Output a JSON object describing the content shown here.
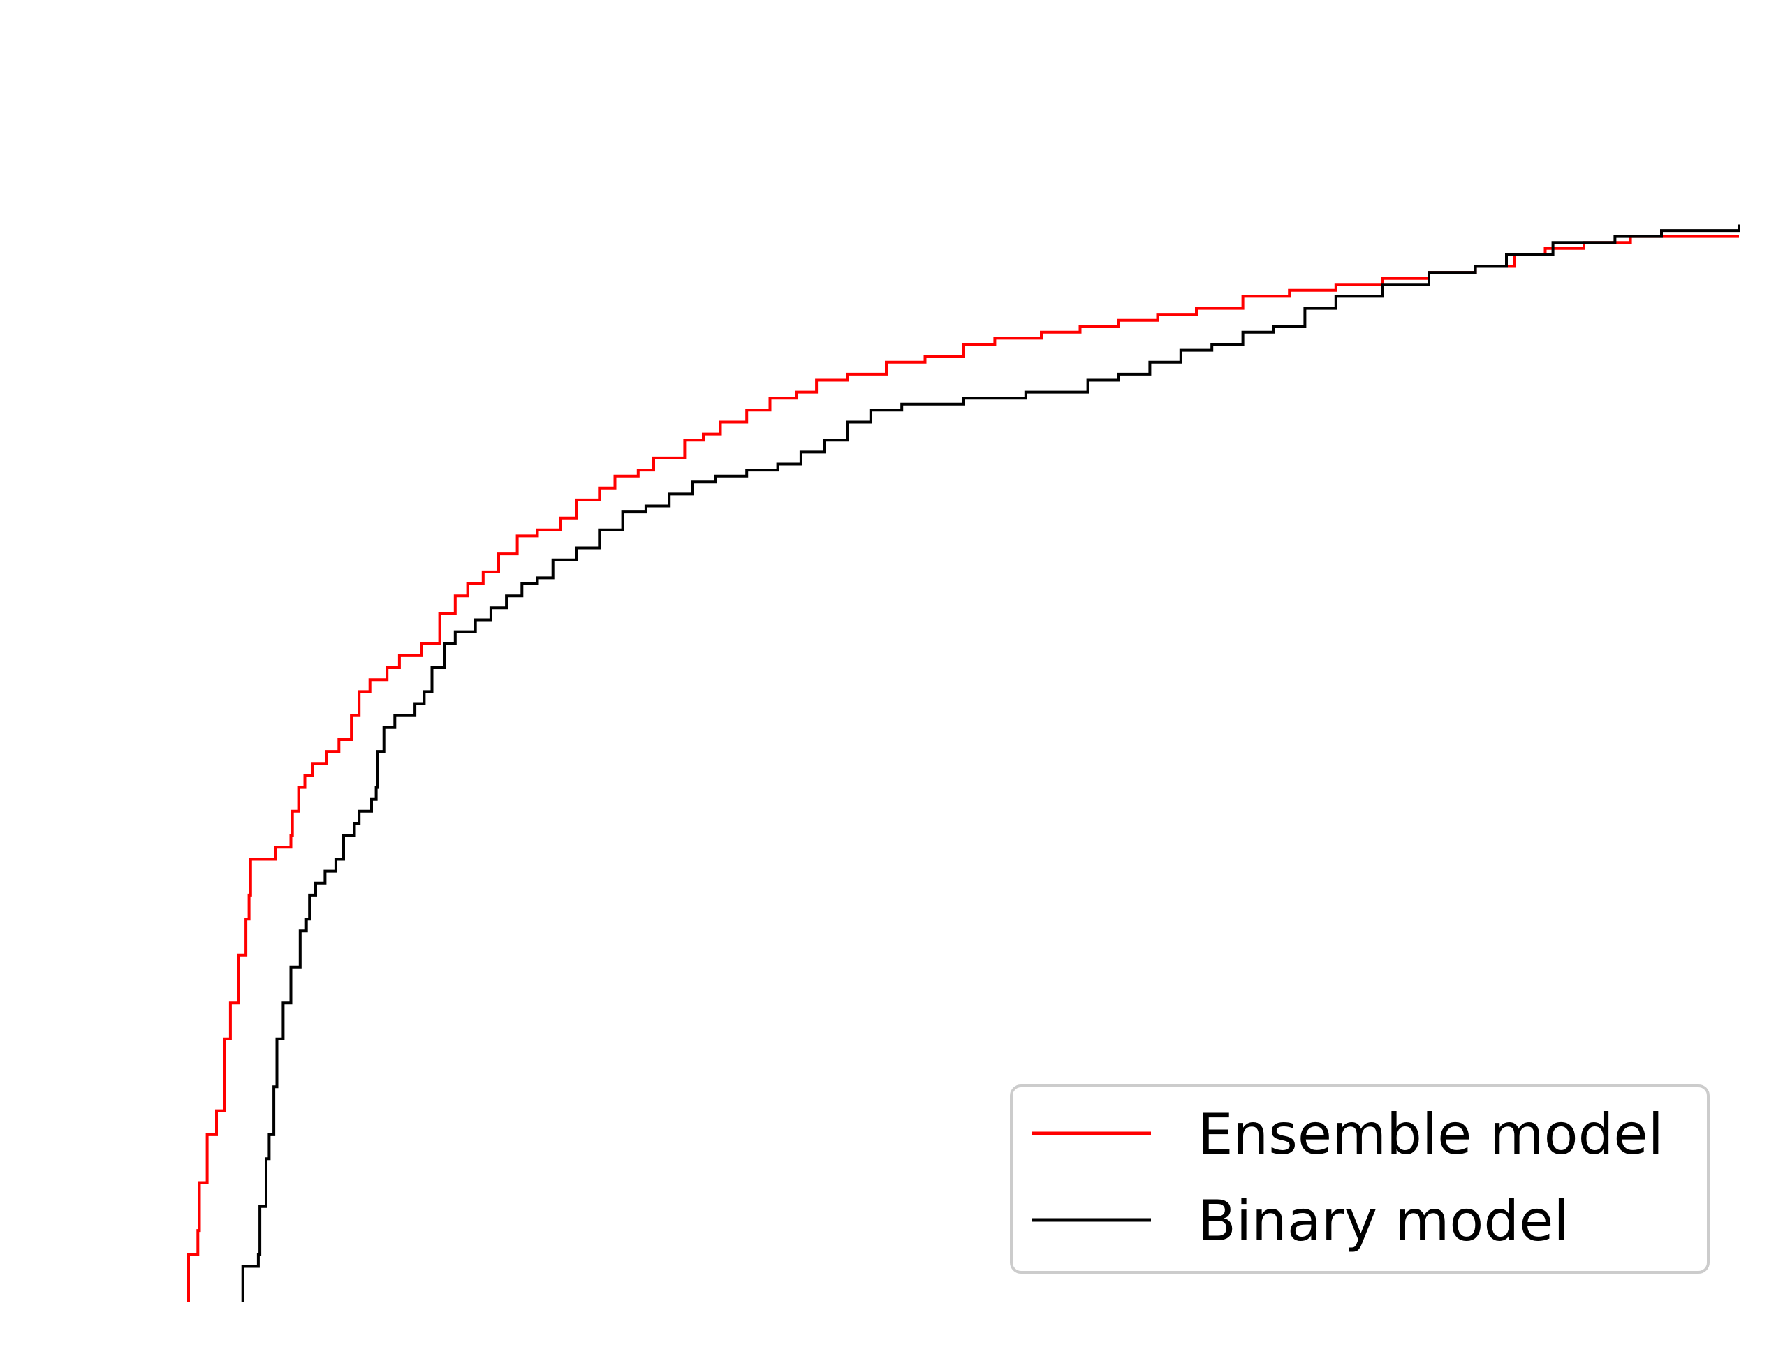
{
  "chart_data": {
    "type": "line",
    "step": true,
    "axes_visible": false,
    "grid": false,
    "legend_position": "lower-right",
    "xlim": [
      0,
      1
    ],
    "ylim": [
      0,
      1
    ],
    "series": [
      {
        "name": "Ensemble model",
        "color": "#ff0000",
        "points": [
          [
            0.0,
            0.0
          ],
          [
            0.0,
            0.04
          ],
          [
            0.006,
            0.06
          ],
          [
            0.007,
            0.1
          ],
          [
            0.012,
            0.14
          ],
          [
            0.018,
            0.16
          ],
          [
            0.023,
            0.22
          ],
          [
            0.027,
            0.25
          ],
          [
            0.032,
            0.29
          ],
          [
            0.037,
            0.32
          ],
          [
            0.039,
            0.34
          ],
          [
            0.04,
            0.37
          ],
          [
            0.048,
            0.37
          ],
          [
            0.056,
            0.38
          ],
          [
            0.066,
            0.39
          ],
          [
            0.067,
            0.41
          ],
          [
            0.071,
            0.43
          ],
          [
            0.075,
            0.44
          ],
          [
            0.08,
            0.45
          ],
          [
            0.089,
            0.46
          ],
          [
            0.097,
            0.47
          ],
          [
            0.105,
            0.49
          ],
          [
            0.11,
            0.51
          ],
          [
            0.117,
            0.52
          ],
          [
            0.128,
            0.53
          ],
          [
            0.136,
            0.54
          ],
          [
            0.15,
            0.55
          ],
          [
            0.162,
            0.575
          ],
          [
            0.172,
            0.59
          ],
          [
            0.18,
            0.6
          ],
          [
            0.19,
            0.61
          ],
          [
            0.2,
            0.625
          ],
          [
            0.212,
            0.64
          ],
          [
            0.225,
            0.645
          ],
          [
            0.24,
            0.655
          ],
          [
            0.25,
            0.67
          ],
          [
            0.265,
            0.68
          ],
          [
            0.275,
            0.69
          ],
          [
            0.29,
            0.695
          ],
          [
            0.3,
            0.705
          ],
          [
            0.32,
            0.72
          ],
          [
            0.332,
            0.725
          ],
          [
            0.343,
            0.735
          ],
          [
            0.36,
            0.745
          ],
          [
            0.375,
            0.755
          ],
          [
            0.392,
            0.76
          ],
          [
            0.405,
            0.77
          ],
          [
            0.425,
            0.775
          ],
          [
            0.45,
            0.785
          ],
          [
            0.475,
            0.79
          ],
          [
            0.5,
            0.8
          ],
          [
            0.52,
            0.805
          ],
          [
            0.55,
            0.81
          ],
          [
            0.575,
            0.815
          ],
          [
            0.6,
            0.82
          ],
          [
            0.625,
            0.825
          ],
          [
            0.65,
            0.83
          ],
          [
            0.68,
            0.84
          ],
          [
            0.71,
            0.845
          ],
          [
            0.74,
            0.85
          ],
          [
            0.77,
            0.855
          ],
          [
            0.8,
            0.86
          ],
          [
            0.83,
            0.865
          ],
          [
            0.855,
            0.875
          ],
          [
            0.875,
            0.88
          ],
          [
            0.9,
            0.885
          ],
          [
            0.93,
            0.89
          ],
          [
            0.96,
            0.89
          ],
          [
            1.0,
            0.89
          ]
        ]
      },
      {
        "name": "Binary model",
        "color": "#000000",
        "points": [
          [
            0.035,
            0.0
          ],
          [
            0.035,
            0.03
          ],
          [
            0.045,
            0.04
          ],
          [
            0.046,
            0.08
          ],
          [
            0.05,
            0.12
          ],
          [
            0.052,
            0.14
          ],
          [
            0.055,
            0.18
          ],
          [
            0.057,
            0.22
          ],
          [
            0.061,
            0.25
          ],
          [
            0.066,
            0.28
          ],
          [
            0.072,
            0.31
          ],
          [
            0.076,
            0.32
          ],
          [
            0.078,
            0.34
          ],
          [
            0.082,
            0.35
          ],
          [
            0.088,
            0.36
          ],
          [
            0.095,
            0.37
          ],
          [
            0.1,
            0.39
          ],
          [
            0.107,
            0.4
          ],
          [
            0.11,
            0.41
          ],
          [
            0.118,
            0.42
          ],
          [
            0.121,
            0.43
          ],
          [
            0.122,
            0.46
          ],
          [
            0.126,
            0.48
          ],
          [
            0.133,
            0.49
          ],
          [
            0.146,
            0.5
          ],
          [
            0.152,
            0.51
          ],
          [
            0.157,
            0.53
          ],
          [
            0.165,
            0.55
          ],
          [
            0.172,
            0.56
          ],
          [
            0.185,
            0.57
          ],
          [
            0.195,
            0.58
          ],
          [
            0.205,
            0.59
          ],
          [
            0.215,
            0.6
          ],
          [
            0.225,
            0.605
          ],
          [
            0.235,
            0.62
          ],
          [
            0.25,
            0.63
          ],
          [
            0.265,
            0.645
          ],
          [
            0.28,
            0.66
          ],
          [
            0.295,
            0.665
          ],
          [
            0.31,
            0.675
          ],
          [
            0.325,
            0.685
          ],
          [
            0.34,
            0.69
          ],
          [
            0.36,
            0.695
          ],
          [
            0.38,
            0.7
          ],
          [
            0.395,
            0.71
          ],
          [
            0.41,
            0.72
          ],
          [
            0.425,
            0.735
          ],
          [
            0.44,
            0.745
          ],
          [
            0.46,
            0.75
          ],
          [
            0.5,
            0.755
          ],
          [
            0.54,
            0.76
          ],
          [
            0.58,
            0.77
          ],
          [
            0.6,
            0.775
          ],
          [
            0.62,
            0.785
          ],
          [
            0.64,
            0.795
          ],
          [
            0.66,
            0.8
          ],
          [
            0.68,
            0.81
          ],
          [
            0.7,
            0.815
          ],
          [
            0.72,
            0.83
          ],
          [
            0.74,
            0.84
          ],
          [
            0.77,
            0.85
          ],
          [
            0.8,
            0.86
          ],
          [
            0.83,
            0.865
          ],
          [
            0.85,
            0.875
          ],
          [
            0.88,
            0.885
          ],
          [
            0.92,
            0.89
          ],
          [
            0.95,
            0.895
          ],
          [
            1.0,
            0.9
          ]
        ]
      }
    ]
  }
}
